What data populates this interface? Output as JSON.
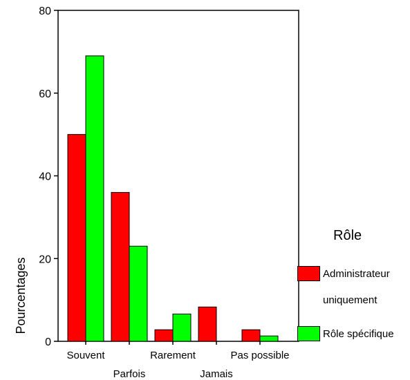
{
  "chart_data": {
    "type": "bar",
    "title": "",
    "xlabel": "",
    "ylabel": "Pourcentages",
    "ylim": [
      0,
      80
    ],
    "yticks": [
      0,
      20,
      40,
      60,
      80
    ],
    "categories": [
      "Souvent",
      "Parfois",
      "Rarement",
      "Jamais",
      "Pas possible"
    ],
    "series": [
      {
        "name": "Administrateur uniquement",
        "color": "#ff0000",
        "values": [
          50,
          36,
          2.8,
          8.3,
          2.8
        ]
      },
      {
        "name": "Rôle spécifique",
        "color": "#00ff00",
        "values": [
          69,
          23,
          6.6,
          0,
          1.3
        ]
      }
    ],
    "grid": false,
    "legend": {
      "title": "Rôle",
      "placement": "right",
      "items": [
        {
          "label_lines": [
            "Administrateur",
            "uniquement"
          ],
          "color": "#ff0000"
        },
        {
          "label_lines": [
            "Rôle spécifique"
          ],
          "color": "#00ff00"
        }
      ]
    }
  }
}
